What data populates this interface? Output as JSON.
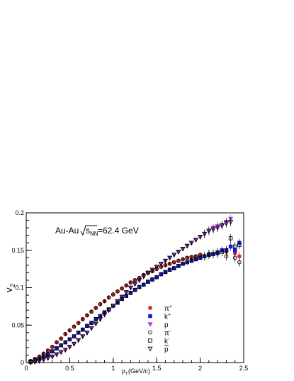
{
  "colors": {
    "pi_plus": "#e0291f",
    "k_plus": "#1a1ae6",
    "p": "#b040e8",
    "neg_marker_stroke": "#000000",
    "axis": "#000000",
    "background": "#ffffff"
  },
  "chart_data": {
    "type": "scatter",
    "annotation": {
      "prefix": "Au-Au ",
      "sqrt": "s",
      "sub": "NN",
      "suffix": "=62.4 GeV"
    },
    "xlabel": {
      "main": "p",
      "sub": "T",
      "rest": "(GeV/c)"
    },
    "ylabel": {
      "main": "v",
      "sub": "2"
    },
    "xlim": [
      0,
      2.5
    ],
    "ylim": [
      0,
      0.2
    ],
    "xticks": [
      0,
      0.5,
      1,
      1.5,
      2,
      2.5
    ],
    "xtick_labels": [
      "0",
      "0.5",
      "1",
      "1.5",
      "2",
      "2.5"
    ],
    "yticks": [
      0,
      0.05,
      0.1,
      0.15,
      0.2
    ],
    "ytick_labels": [
      "0",
      "0.05",
      "0.1",
      "0.15",
      "0.2"
    ],
    "grid": false,
    "legend_position": "bottom-right",
    "series": [
      {
        "name": "π",
        "sup": "+",
        "bar": false,
        "marker": "circle",
        "filled": true,
        "color": "#e0291f",
        "x": [
          0.05,
          0.1,
          0.15,
          0.2,
          0.25,
          0.3,
          0.35,
          0.4,
          0.45,
          0.5,
          0.55,
          0.6,
          0.65,
          0.7,
          0.75,
          0.8,
          0.85,
          0.9,
          0.95,
          1.0,
          1.05,
          1.1,
          1.15,
          1.2,
          1.25,
          1.3,
          1.35,
          1.4,
          1.45,
          1.5,
          1.55,
          1.6,
          1.65,
          1.7,
          1.75,
          1.8,
          1.85,
          1.9,
          1.95,
          2.0,
          2.1,
          2.2,
          2.3,
          2.4,
          2.45
        ],
        "y": [
          0.002,
          0.005,
          0.008,
          0.012,
          0.016,
          0.021,
          0.027,
          0.032,
          0.038,
          0.043,
          0.048,
          0.053,
          0.058,
          0.063,
          0.068,
          0.073,
          0.078,
          0.082,
          0.087,
          0.091,
          0.095,
          0.099,
          0.103,
          0.107,
          0.11,
          0.113,
          0.117,
          0.12,
          0.122,
          0.125,
          0.128,
          0.13,
          0.132,
          0.134,
          0.136,
          0.138,
          0.14,
          0.141,
          0.142,
          0.144,
          0.145,
          0.146,
          0.148,
          0.146,
          0.142
        ]
      },
      {
        "name": "k",
        "sup": "+",
        "bar": false,
        "marker": "square",
        "filled": true,
        "color": "#1a1ae6",
        "x": [
          0.05,
          0.1,
          0.15,
          0.2,
          0.25,
          0.3,
          0.35,
          0.4,
          0.45,
          0.5,
          0.55,
          0.6,
          0.65,
          0.7,
          0.75,
          0.8,
          0.85,
          0.9,
          0.95,
          1.0,
          1.05,
          1.1,
          1.15,
          1.2,
          1.25,
          1.3,
          1.35,
          1.4,
          1.45,
          1.5,
          1.55,
          1.6,
          1.65,
          1.7,
          1.75,
          1.8,
          1.85,
          1.9,
          1.95,
          2.0,
          2.05,
          2.1,
          2.15,
          2.2,
          2.25,
          2.3,
          2.35,
          2.4,
          2.45
        ],
        "y": [
          0.001,
          0.003,
          0.005,
          0.008,
          0.011,
          0.015,
          0.019,
          0.023,
          0.027,
          0.031,
          0.035,
          0.04,
          0.044,
          0.049,
          0.053,
          0.058,
          0.062,
          0.067,
          0.071,
          0.076,
          0.08,
          0.085,
          0.089,
          0.093,
          0.097,
          0.101,
          0.104,
          0.108,
          0.111,
          0.114,
          0.118,
          0.121,
          0.124,
          0.126,
          0.129,
          0.132,
          0.134,
          0.136,
          0.138,
          0.14,
          0.142,
          0.144,
          0.145,
          0.147,
          0.15,
          0.15,
          0.155,
          0.15,
          0.16
        ]
      },
      {
        "name": "p",
        "sup": "",
        "bar": false,
        "marker": "triangle-down",
        "filled": true,
        "color": "#b040e8",
        "x": [
          0.05,
          0.1,
          0.15,
          0.2,
          0.25,
          0.3,
          0.35,
          0.4,
          0.45,
          0.5,
          0.55,
          0.6,
          0.65,
          0.7,
          0.75,
          0.8,
          0.85,
          0.9,
          0.95,
          1.0,
          1.05,
          1.1,
          1.15,
          1.2,
          1.25,
          1.3,
          1.35,
          1.4,
          1.45,
          1.5,
          1.55,
          1.6,
          1.65,
          1.7,
          1.75,
          1.8,
          1.85,
          1.9,
          1.95,
          2.0,
          2.05,
          2.1,
          2.15,
          2.2,
          2.25,
          2.3,
          2.35
        ],
        "y": [
          0.0,
          0.001,
          0.002,
          0.004,
          0.006,
          0.008,
          0.011,
          0.014,
          0.017,
          0.021,
          0.025,
          0.03,
          0.035,
          0.04,
          0.046,
          0.052,
          0.058,
          0.064,
          0.07,
          0.076,
          0.082,
          0.088,
          0.094,
          0.1,
          0.105,
          0.11,
          0.115,
          0.12,
          0.124,
          0.128,
          0.132,
          0.136,
          0.14,
          0.144,
          0.148,
          0.152,
          0.156,
          0.16,
          0.164,
          0.168,
          0.172,
          0.176,
          0.18,
          0.182,
          0.184,
          0.188,
          0.192
        ]
      },
      {
        "name": "π",
        "sup": "-",
        "bar": false,
        "marker": "circle",
        "filled": false,
        "color": "#000000",
        "x": [
          0.05,
          0.1,
          0.15,
          0.2,
          0.25,
          0.3,
          0.35,
          0.4,
          0.45,
          0.5,
          0.55,
          0.6,
          0.65,
          0.7,
          0.75,
          0.8,
          0.85,
          0.9,
          0.95,
          1.0,
          1.05,
          1.1,
          1.15,
          1.2,
          1.25,
          1.3,
          1.35,
          1.4,
          1.45,
          1.5,
          1.55,
          1.6,
          1.65,
          1.7,
          1.75,
          1.8,
          1.85,
          1.9,
          1.95,
          2.0,
          2.1,
          2.2,
          2.3,
          2.4,
          2.45
        ],
        "y": [
          0.002,
          0.005,
          0.008,
          0.012,
          0.016,
          0.021,
          0.027,
          0.032,
          0.038,
          0.043,
          0.048,
          0.053,
          0.058,
          0.063,
          0.068,
          0.073,
          0.078,
          0.082,
          0.087,
          0.091,
          0.095,
          0.099,
          0.103,
          0.107,
          0.11,
          0.113,
          0.117,
          0.12,
          0.122,
          0.125,
          0.128,
          0.13,
          0.132,
          0.134,
          0.136,
          0.138,
          0.14,
          0.141,
          0.142,
          0.144,
          0.145,
          0.146,
          0.142,
          0.14,
          0.134
        ]
      },
      {
        "name": "k",
        "sup": "-",
        "bar": false,
        "marker": "square",
        "filled": false,
        "color": "#000000",
        "x": [
          0.05,
          0.1,
          0.15,
          0.2,
          0.25,
          0.3,
          0.35,
          0.4,
          0.45,
          0.5,
          0.55,
          0.6,
          0.65,
          0.7,
          0.75,
          0.8,
          0.85,
          0.9,
          0.95,
          1.0,
          1.05,
          1.1,
          1.15,
          1.2,
          1.25,
          1.3,
          1.35,
          1.4,
          1.45,
          1.5,
          1.55,
          1.6,
          1.65,
          1.7,
          1.75,
          1.8,
          1.85,
          1.9,
          1.95,
          2.0,
          2.05,
          2.1,
          2.15,
          2.2,
          2.25,
          2.3,
          2.35,
          2.4,
          2.45
        ],
        "y": [
          0.001,
          0.003,
          0.005,
          0.008,
          0.011,
          0.015,
          0.019,
          0.023,
          0.027,
          0.031,
          0.035,
          0.04,
          0.044,
          0.049,
          0.053,
          0.058,
          0.062,
          0.067,
          0.071,
          0.076,
          0.08,
          0.085,
          0.089,
          0.093,
          0.097,
          0.101,
          0.104,
          0.108,
          0.111,
          0.114,
          0.118,
          0.121,
          0.124,
          0.126,
          0.129,
          0.132,
          0.134,
          0.136,
          0.138,
          0.14,
          0.142,
          0.144,
          0.145,
          0.147,
          0.148,
          0.15,
          0.166,
          0.155,
          0.157
        ]
      },
      {
        "name": "p",
        "sup": "",
        "bar": true,
        "marker": "triangle-down",
        "filled": false,
        "color": "#000000",
        "x": [
          0.05,
          0.1,
          0.15,
          0.2,
          0.25,
          0.3,
          0.35,
          0.4,
          0.45,
          0.5,
          0.55,
          0.6,
          0.65,
          0.7,
          0.75,
          0.8,
          0.85,
          0.9,
          0.95,
          1.0,
          1.05,
          1.1,
          1.15,
          1.2,
          1.25,
          1.3,
          1.35,
          1.4,
          1.45,
          1.5,
          1.55,
          1.6,
          1.65,
          1.7,
          1.75,
          1.8,
          1.85,
          1.9,
          1.95,
          2.0,
          2.05,
          2.1,
          2.15,
          2.2,
          2.25,
          2.3,
          2.35
        ],
        "y": [
          0.0,
          0.001,
          0.002,
          0.004,
          0.006,
          0.008,
          0.011,
          0.014,
          0.017,
          0.021,
          0.025,
          0.03,
          0.035,
          0.04,
          0.046,
          0.052,
          0.058,
          0.064,
          0.07,
          0.076,
          0.082,
          0.088,
          0.094,
          0.1,
          0.105,
          0.11,
          0.115,
          0.12,
          0.124,
          0.128,
          0.132,
          0.136,
          0.14,
          0.144,
          0.148,
          0.152,
          0.156,
          0.16,
          0.164,
          0.168,
          0.172,
          0.176,
          0.178,
          0.18,
          0.183,
          0.186,
          0.188
        ]
      }
    ]
  }
}
